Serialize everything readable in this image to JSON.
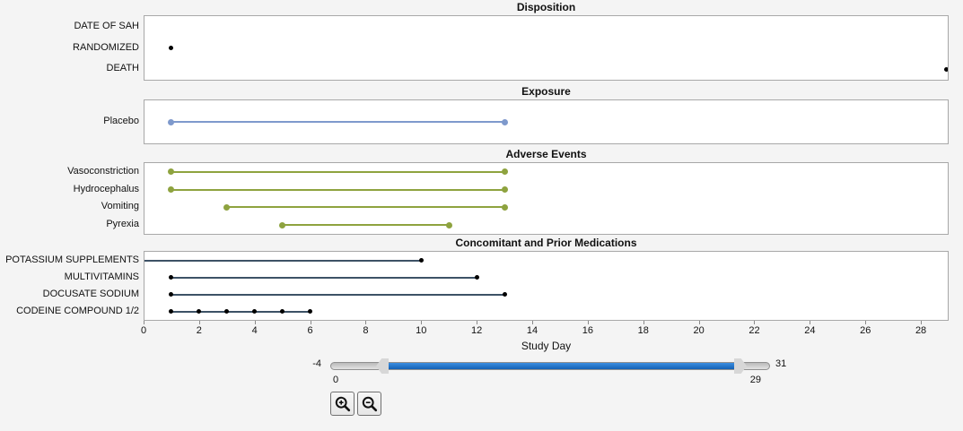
{
  "colors": {
    "background": "#f4f4f4",
    "panel_bg": "#ffffff",
    "panel_border": "#a8a8a8",
    "exposure_line": "#7e99cc",
    "adverse_line": "#8ea33f",
    "medication_line": "#3d5266",
    "marker_black": "#000000",
    "slider_fill": "#1b72c8",
    "slider_track": "#c9c9c9"
  },
  "chart_data": {
    "type": "timeline",
    "x_axis": {
      "label": "Study Day",
      "domain": [
        0,
        29
      ],
      "ticks": [
        0,
        2,
        4,
        6,
        8,
        10,
        12,
        14,
        16,
        18,
        20,
        22,
        24,
        26,
        28
      ]
    },
    "panels": [
      {
        "title": "Disposition",
        "rows": [
          {
            "label": "DATE OF SAH"
          },
          {
            "label": "RANDOMIZED",
            "points": [
              1
            ],
            "point_color": "#000000"
          },
          {
            "label": "DEATH",
            "points": [
              29
            ],
            "point_color": "#000000"
          }
        ]
      },
      {
        "title": "Exposure",
        "rows": [
          {
            "label": "Placebo",
            "segments": [
              [
                1,
                13
              ]
            ],
            "color": "#7e99cc",
            "endpoints": true
          }
        ]
      },
      {
        "title": "Adverse Events",
        "rows": [
          {
            "label": "Vasoconstriction",
            "segments": [
              [
                1,
                13
              ]
            ],
            "color": "#8ea33f",
            "endpoints": true
          },
          {
            "label": "Hydrocephalus",
            "segments": [
              [
                1,
                13
              ]
            ],
            "color": "#8ea33f",
            "endpoints": true
          },
          {
            "label": "Vomiting",
            "segments": [
              [
                3,
                13
              ]
            ],
            "color": "#8ea33f",
            "endpoints": true
          },
          {
            "label": "Pyrexia",
            "segments": [
              [
                5,
                11
              ]
            ],
            "color": "#8ea33f",
            "endpoints": true
          }
        ]
      },
      {
        "title": "Concomitant and Prior Medications",
        "rows": [
          {
            "label": "POTASSIUM SUPPLEMENTS",
            "segments": [
              [
                0,
                10
              ]
            ],
            "color": "#3d5266",
            "points": [
              10
            ],
            "point_color": "#000000"
          },
          {
            "label": "MULTIVITAMINS",
            "segments": [
              [
                1,
                12
              ]
            ],
            "color": "#3d5266",
            "points": [
              1,
              12
            ],
            "point_color": "#000000"
          },
          {
            "label": "DOCUSATE SODIUM",
            "segments": [
              [
                1,
                13
              ]
            ],
            "color": "#3d5266",
            "points": [
              1,
              13
            ],
            "point_color": "#000000"
          },
          {
            "label": "CODEINE COMPOUND 1/2",
            "segments": [
              [
                1,
                6
              ]
            ],
            "color": "#3d5266",
            "points": [
              1,
              2,
              3,
              4,
              5,
              6
            ],
            "point_color": "#000000"
          }
        ]
      }
    ]
  },
  "slider": {
    "min_label": "-4",
    "max_label": "31",
    "low_value": "0",
    "high_value": "29"
  },
  "toolbar": {
    "zoom_in_icon": "zoom-in-icon",
    "zoom_out_icon": "zoom-out-icon"
  }
}
